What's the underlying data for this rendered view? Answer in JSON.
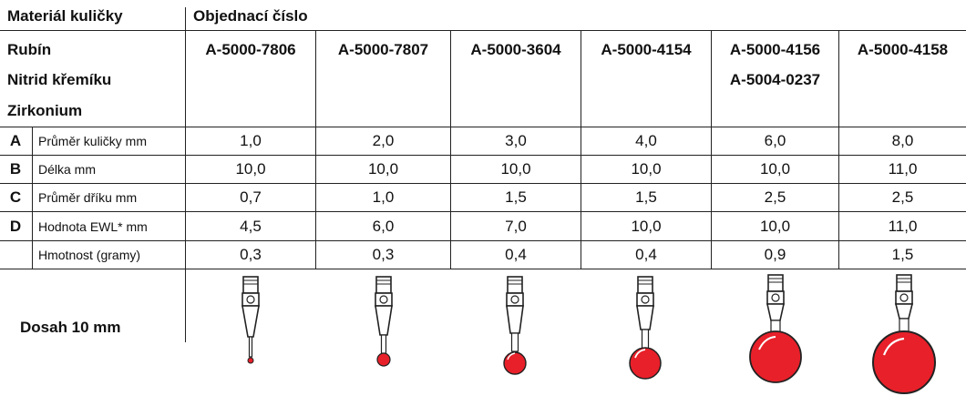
{
  "header": {
    "material_label": "Materiál kuličky",
    "order_label": "Objednací číslo"
  },
  "materials": [
    "Rubín",
    "Nitrid křemíku",
    "Zirkonium"
  ],
  "columns": [
    {
      "part_numbers": [
        "A-5000-7806"
      ],
      "values": [
        "1,0",
        "10,0",
        "0,7",
        "4,5",
        "0,3"
      ]
    },
    {
      "part_numbers": [
        "A-5000-7807"
      ],
      "values": [
        "2,0",
        "10,0",
        "1,0",
        "6,0",
        "0,3"
      ]
    },
    {
      "part_numbers": [
        "A-5000-3604"
      ],
      "values": [
        "3,0",
        "10,0",
        "1,5",
        "7,0",
        "0,4"
      ]
    },
    {
      "part_numbers": [
        "A-5000-4154"
      ],
      "values": [
        "4,0",
        "10,0",
        "1,5",
        "10,0",
        "0,4"
      ]
    },
    {
      "part_numbers": [
        "A-5000-4156",
        "A-5004-0237"
      ],
      "values": [
        "6,0",
        "10,0",
        "2,5",
        "10,0",
        "0,9"
      ]
    },
    {
      "part_numbers": [
        "A-5000-4158"
      ],
      "values": [
        "8,0",
        "11,0",
        "2,5",
        "11,0",
        "1,5"
      ]
    }
  ],
  "rows": [
    {
      "letter": "A",
      "label": "Průměr kuličky mm"
    },
    {
      "letter": "B",
      "label": "Délka mm"
    },
    {
      "letter": "C",
      "label": "Průměr dříku mm"
    },
    {
      "letter": "D",
      "label": "Hodnota EWL* mm"
    },
    {
      "letter": "",
      "label": "Hmotnost (gramy)"
    }
  ],
  "footer": {
    "reach_label": "Dosah 10 mm"
  },
  "colors": {
    "ruby": "#e8202a",
    "ruby_dark": "#b5121b",
    "line": "#222222"
  }
}
